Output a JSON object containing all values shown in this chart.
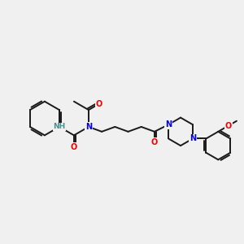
{
  "bg_color": "#f0f0f0",
  "bond_color": "#1a1a1a",
  "nitrogen_color": "#0000ee",
  "oxygen_color": "#ee0000",
  "hydrogen_color": "#4a9090",
  "bond_width": 1.4,
  "font_size_atom": 7.0,
  "figsize": [
    3.0,
    3.0
  ],
  "dpi": 100,
  "xlim": [
    0,
    10
  ],
  "ylim": [
    0,
    10
  ]
}
